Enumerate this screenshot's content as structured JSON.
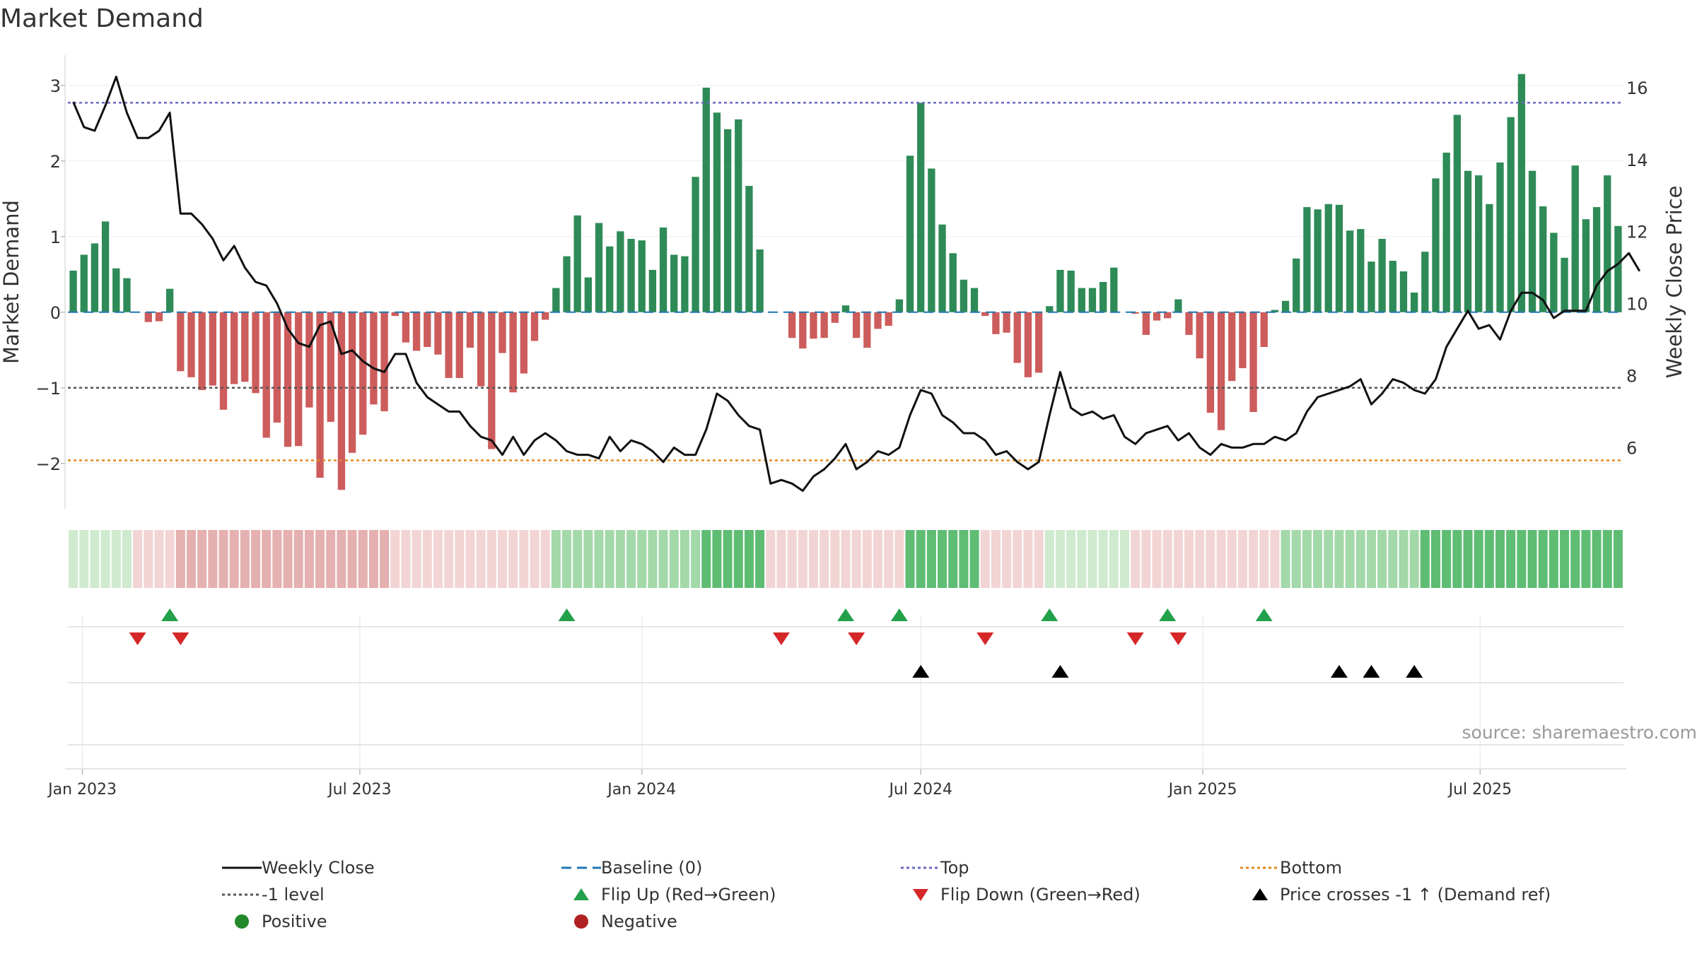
{
  "title": "Market Demand",
  "source": "source: sharemaestro.com",
  "colors": {
    "positive": "#2e8b57",
    "negative": "#cd5c5c",
    "price": "#111111",
    "baseline": "#1f77b4",
    "top": "#6b6bbf",
    "minus1": "#555555",
    "bottom": "#e08a1e",
    "flip_up": "#22a04a",
    "flip_down": "#d62728",
    "cross": "#000000"
  },
  "chart_data": {
    "type": "bar",
    "ylabel": "Market Demand",
    "y2label": "Weekly Close Price",
    "ylim": [
      -2.6,
      3.4
    ],
    "y2lim": [
      4.3,
      16.9
    ],
    "yticks": [
      3,
      2,
      1,
      0,
      -1,
      -2
    ],
    "yticklabels": [
      "3",
      "2",
      "1",
      "0",
      "−1",
      "−2"
    ],
    "y2ticks": [
      16,
      14,
      12,
      10,
      8,
      6
    ],
    "y2ticklabels": [
      "16",
      "14",
      "12",
      "10",
      "8",
      "6"
    ],
    "xticks": [
      "2023-01-01",
      "2023-07-01",
      "2024-01-01",
      "2024-07-01",
      "2025-01-01",
      "2025-07-01"
    ],
    "xticklabels": [
      "Jan 2023",
      "Jul 2023",
      "Jan 2024",
      "Jul 2024",
      "Jan 2025",
      "Jul 2025"
    ],
    "start_date": "2022-12-26",
    "reference_lines": {
      "top": 2.77,
      "minus1": -1.0,
      "bottom": -1.96,
      "baseline": 0
    },
    "demand": [
      0.55,
      0.76,
      0.91,
      1.2,
      0.58,
      0.45,
      0,
      -0.13,
      -0.12,
      0.31,
      -0.78,
      -0.86,
      -1.03,
      -0.97,
      -1.29,
      -0.95,
      -0.92,
      -1.07,
      -1.66,
      -1.46,
      -1.78,
      -1.77,
      -1.26,
      -2.19,
      -1.45,
      -2.35,
      -1.86,
      -1.62,
      -1.22,
      -1.31,
      -0.05,
      -0.4,
      -0.51,
      -0.46,
      -0.56,
      -0.87,
      -0.87,
      -0.47,
      -0.98,
      -1.81,
      -0.54,
      -1.06,
      -0.81,
      -0.38,
      -0.1,
      0.32,
      0.74,
      1.28,
      0.46,
      1.18,
      0.87,
      1.07,
      0.97,
      0.95,
      0.56,
      1.12,
      0.76,
      0.74,
      1.79,
      2.97,
      2.64,
      2.42,
      2.55,
      1.67,
      0.83,
      0,
      0,
      -0.34,
      -0.48,
      -0.35,
      -0.34,
      -0.14,
      0.09,
      -0.34,
      -0.47,
      -0.22,
      -0.18,
      0.17,
      2.07,
      2.77,
      1.9,
      1.16,
      0.78,
      0.43,
      0.32,
      -0.05,
      -0.29,
      -0.27,
      -0.67,
      -0.86,
      -0.8,
      0.08,
      0.56,
      0.55,
      0.32,
      0.32,
      0.4,
      0.59,
      0,
      -0.02,
      -0.3,
      -0.11,
      -0.08,
      0.17,
      -0.3,
      -0.61,
      -1.33,
      -1.56,
      -0.91,
      -0.74,
      -1.32,
      -0.46,
      0.03,
      0.15,
      0.71,
      1.39,
      1.36,
      1.43,
      1.42,
      1.08,
      1.1,
      0.67,
      0.97,
      0.68,
      0.54,
      0.26,
      0.8,
      1.77,
      2.11,
      2.61,
      1.87,
      1.81,
      1.43,
      1.98,
      2.58,
      3.15,
      1.87,
      1.4,
      1.05,
      0.72,
      1.94,
      1.23,
      1.39,
      1.81,
      1.14
    ],
    "price": [
      15.6,
      14.9,
      14.8,
      15.5,
      16.3,
      15.3,
      14.6,
      14.6,
      14.8,
      15.3,
      12.5,
      12.5,
      12.2,
      11.8,
      11.2,
      11.6,
      11.0,
      10.6,
      10.5,
      10.0,
      9.3,
      8.9,
      8.8,
      9.4,
      9.5,
      8.6,
      8.7,
      8.4,
      8.2,
      8.1,
      8.6,
      8.6,
      7.8,
      7.4,
      7.2,
      7.0,
      7.0,
      6.6,
      6.3,
      6.2,
      5.8,
      6.3,
      5.8,
      6.2,
      6.4,
      6.2,
      5.9,
      5.8,
      5.8,
      5.7,
      6.3,
      5.9,
      6.2,
      6.1,
      5.9,
      5.6,
      6.0,
      5.8,
      5.8,
      6.5,
      7.5,
      7.3,
      6.9,
      6.6,
      6.5,
      5.0,
      5.1,
      5.0,
      4.8,
      5.2,
      5.4,
      5.7,
      6.1,
      5.4,
      5.6,
      5.9,
      5.8,
      6.0,
      6.9,
      7.6,
      7.5,
      6.9,
      6.7,
      6.4,
      6.4,
      6.2,
      5.8,
      5.9,
      5.6,
      5.4,
      5.6,
      6.9,
      8.1,
      7.1,
      6.9,
      7.0,
      6.8,
      6.9,
      6.3,
      6.1,
      6.4,
      6.5,
      6.6,
      6.2,
      6.4,
      6.0,
      5.8,
      6.1,
      6.0,
      6.0,
      6.1,
      6.1,
      6.3,
      6.2,
      6.4,
      7.0,
      7.4,
      7.5,
      7.6,
      7.7,
      7.9,
      7.2,
      7.5,
      7.9,
      7.8,
      7.6,
      7.5,
      7.9,
      8.8,
      9.3,
      9.8,
      9.3,
      9.4,
      9.0,
      9.8,
      10.3,
      10.3,
      10.1,
      9.6,
      9.8,
      9.8,
      9.8,
      10.5,
      10.9,
      11.1,
      11.4,
      10.9
    ],
    "flip_up_weeks": [
      9,
      46,
      72,
      77,
      91,
      102,
      111
    ],
    "flip_down_weeks": [
      6,
      10,
      66,
      73,
      85,
      99,
      103
    ],
    "cross_weeks": [
      79,
      92,
      118,
      121,
      125
    ],
    "bands": [
      {
        "from": 0,
        "to": 6,
        "tone": "pos",
        "level": 1
      },
      {
        "from": 6,
        "to": 10,
        "tone": "neg",
        "level": 1
      },
      {
        "from": 10,
        "to": 30,
        "tone": "neg",
        "level": 2
      },
      {
        "from": 30,
        "to": 45,
        "tone": "neg",
        "level": 1
      },
      {
        "from": 45,
        "to": 59,
        "tone": "pos",
        "level": 2
      },
      {
        "from": 59,
        "to": 65,
        "tone": "pos",
        "level": 3
      },
      {
        "from": 65,
        "to": 78,
        "tone": "neg",
        "level": 1
      },
      {
        "from": 78,
        "to": 85,
        "tone": "pos",
        "level": 3
      },
      {
        "from": 85,
        "to": 91,
        "tone": "neg",
        "level": 1
      },
      {
        "from": 91,
        "to": 99,
        "tone": "pos",
        "level": 1
      },
      {
        "from": 99,
        "to": 113,
        "tone": "neg",
        "level": 1
      },
      {
        "from": 113,
        "to": 126,
        "tone": "pos",
        "level": 2
      },
      {
        "from": 126,
        "to": 145,
        "tone": "pos",
        "level": 3
      }
    ]
  },
  "legend": [
    {
      "label": "Weekly Close",
      "marker": "line-solid"
    },
    {
      "label": "Baseline (0)",
      "marker": "line-dashed"
    },
    {
      "label": "Top",
      "marker": "line-dotted-purple"
    },
    {
      "label": "Bottom",
      "marker": "line-dotted-orange"
    },
    {
      "label": "-1 level",
      "marker": "line-dotted-gray"
    },
    {
      "label": "Flip Up (Red→Green)",
      "marker": "triangle-up-green"
    },
    {
      "label": "Flip Down (Green→Red)",
      "marker": "triangle-down-red"
    },
    {
      "label": "Price crosses -1 ↑ (Demand ref)",
      "marker": "triangle-up-black"
    },
    {
      "label": "Positive",
      "marker": "circle-green"
    },
    {
      "label": "Negative",
      "marker": "circle-red"
    }
  ]
}
